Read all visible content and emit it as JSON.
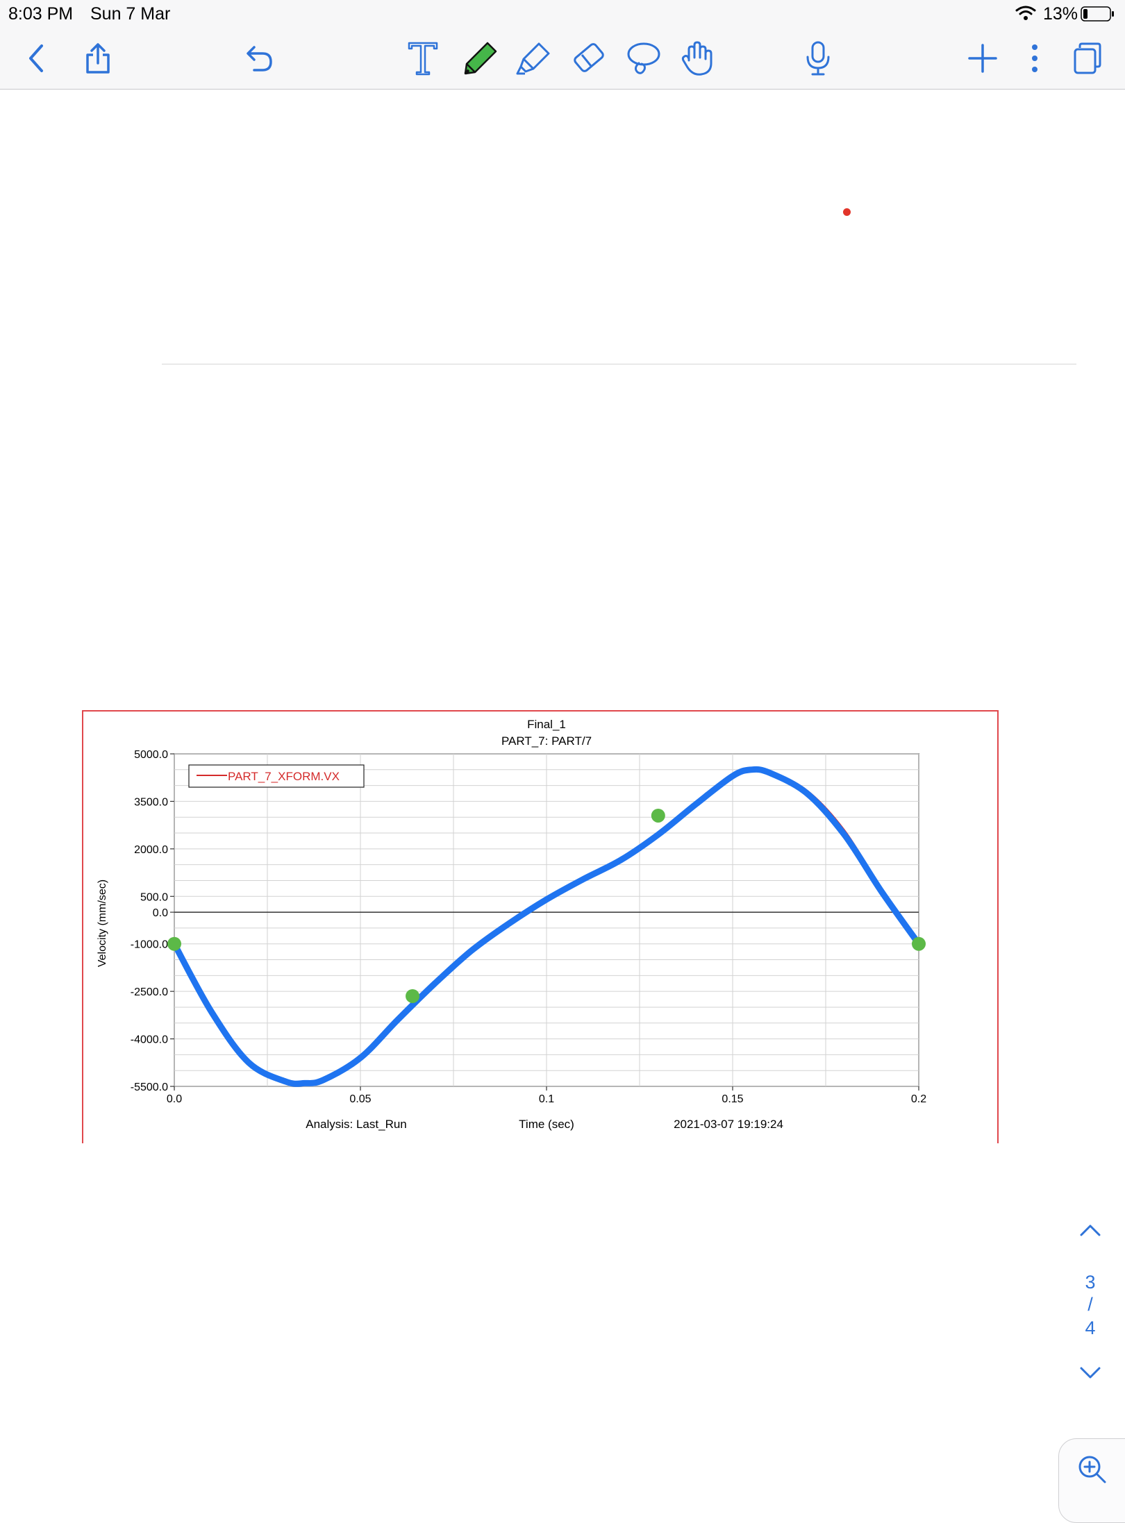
{
  "status_bar": {
    "time": "8:03 PM",
    "date": "Sun 7 Mar",
    "battery": "13%",
    "wifi_icon": "wifi-icon",
    "battery_icon": "battery-icon"
  },
  "toolbar": {
    "icons": [
      "back-icon",
      "share-icon",
      "undo-icon",
      "text-tool-icon",
      "pen-tool-icon",
      "highlighter-tool-icon",
      "eraser-tool-icon",
      "lasso-tool-icon",
      "hand-touch-icon",
      "microphone-icon",
      "add-icon",
      "more-options-icon",
      "pages-icon"
    ],
    "accent_color": "#2f73d8",
    "pen_color": "#45b649"
  },
  "chart": {
    "title": "Final_1",
    "subtitle": "PART_7: PART/7",
    "legend": "PART_7_XFORM.VX",
    "footer_left": "Analysis:  Last_Run",
    "footer_center": "Time (sec)",
    "footer_right": "2021-03-07 19:19:24"
  },
  "chart_data": {
    "type": "line",
    "title": "Final_1",
    "subtitle": "PART_7: PART/7",
    "xlabel": "Time (sec)",
    "ylabel": "Velocity (mm/sec)",
    "xlim": [
      0,
      0.2
    ],
    "ylim": [
      -5500,
      5000
    ],
    "x_ticks": [
      0.0,
      0.05,
      0.1,
      0.15,
      0.2
    ],
    "x_tick_labels": [
      "0.0",
      "0.05",
      "0.1",
      "0.15",
      "0.2"
    ],
    "y_ticks": [
      5000,
      3500,
      2000,
      500,
      0,
      -1000,
      -2500,
      -4000,
      -5500
    ],
    "y_tick_labels": [
      "5000.0",
      "3500.0",
      "2000.0",
      "500.0",
      "0.0",
      "-1000.0",
      "-2500.0",
      "-4000.0",
      "-5500.0"
    ],
    "grid": true,
    "legend_position": "top-left",
    "series": [
      {
        "name": "PART_7_XFORM.VX",
        "color": "#d42a2a",
        "x": [
          0,
          0.01,
          0.02,
          0.03,
          0.035,
          0.04,
          0.05,
          0.06,
          0.07,
          0.08,
          0.09,
          0.1,
          0.11,
          0.12,
          0.13,
          0.14,
          0.15,
          0.155,
          0.16,
          0.17,
          0.18,
          0.19,
          0.2
        ],
        "y": [
          -1000,
          -3100,
          -4700,
          -5350,
          -5400,
          -5300,
          -4600,
          -3350,
          -2200,
          -1200,
          -350,
          400,
          1050,
          1650,
          2400,
          3400,
          4300,
          4500,
          4450,
          3850,
          2600,
          750,
          -1000
        ]
      },
      {
        "name": "",
        "color": "#1f74f0",
        "x": [
          0,
          0.01,
          0.02,
          0.03,
          0.035,
          0.04,
          0.05,
          0.06,
          0.07,
          0.08,
          0.09,
          0.1,
          0.11,
          0.12,
          0.13,
          0.14,
          0.15,
          0.155,
          0.16,
          0.17,
          0.18,
          0.19,
          0.2
        ],
        "y": [
          -1000,
          -3150,
          -4750,
          -5350,
          -5400,
          -5300,
          -4600,
          -3400,
          -2250,
          -1200,
          -350,
          400,
          1050,
          1650,
          2450,
          3400,
          4300,
          4500,
          4400,
          3750,
          2450,
          650,
          -1000
        ]
      }
    ],
    "markers": {
      "color": "#5cb947",
      "x": [
        0,
        0.064,
        0.13,
        0.2
      ],
      "y": [
        -1000,
        -2650,
        3050,
        -1000
      ]
    }
  },
  "page_nav": {
    "current": "3",
    "separator": "/",
    "total": "4"
  }
}
